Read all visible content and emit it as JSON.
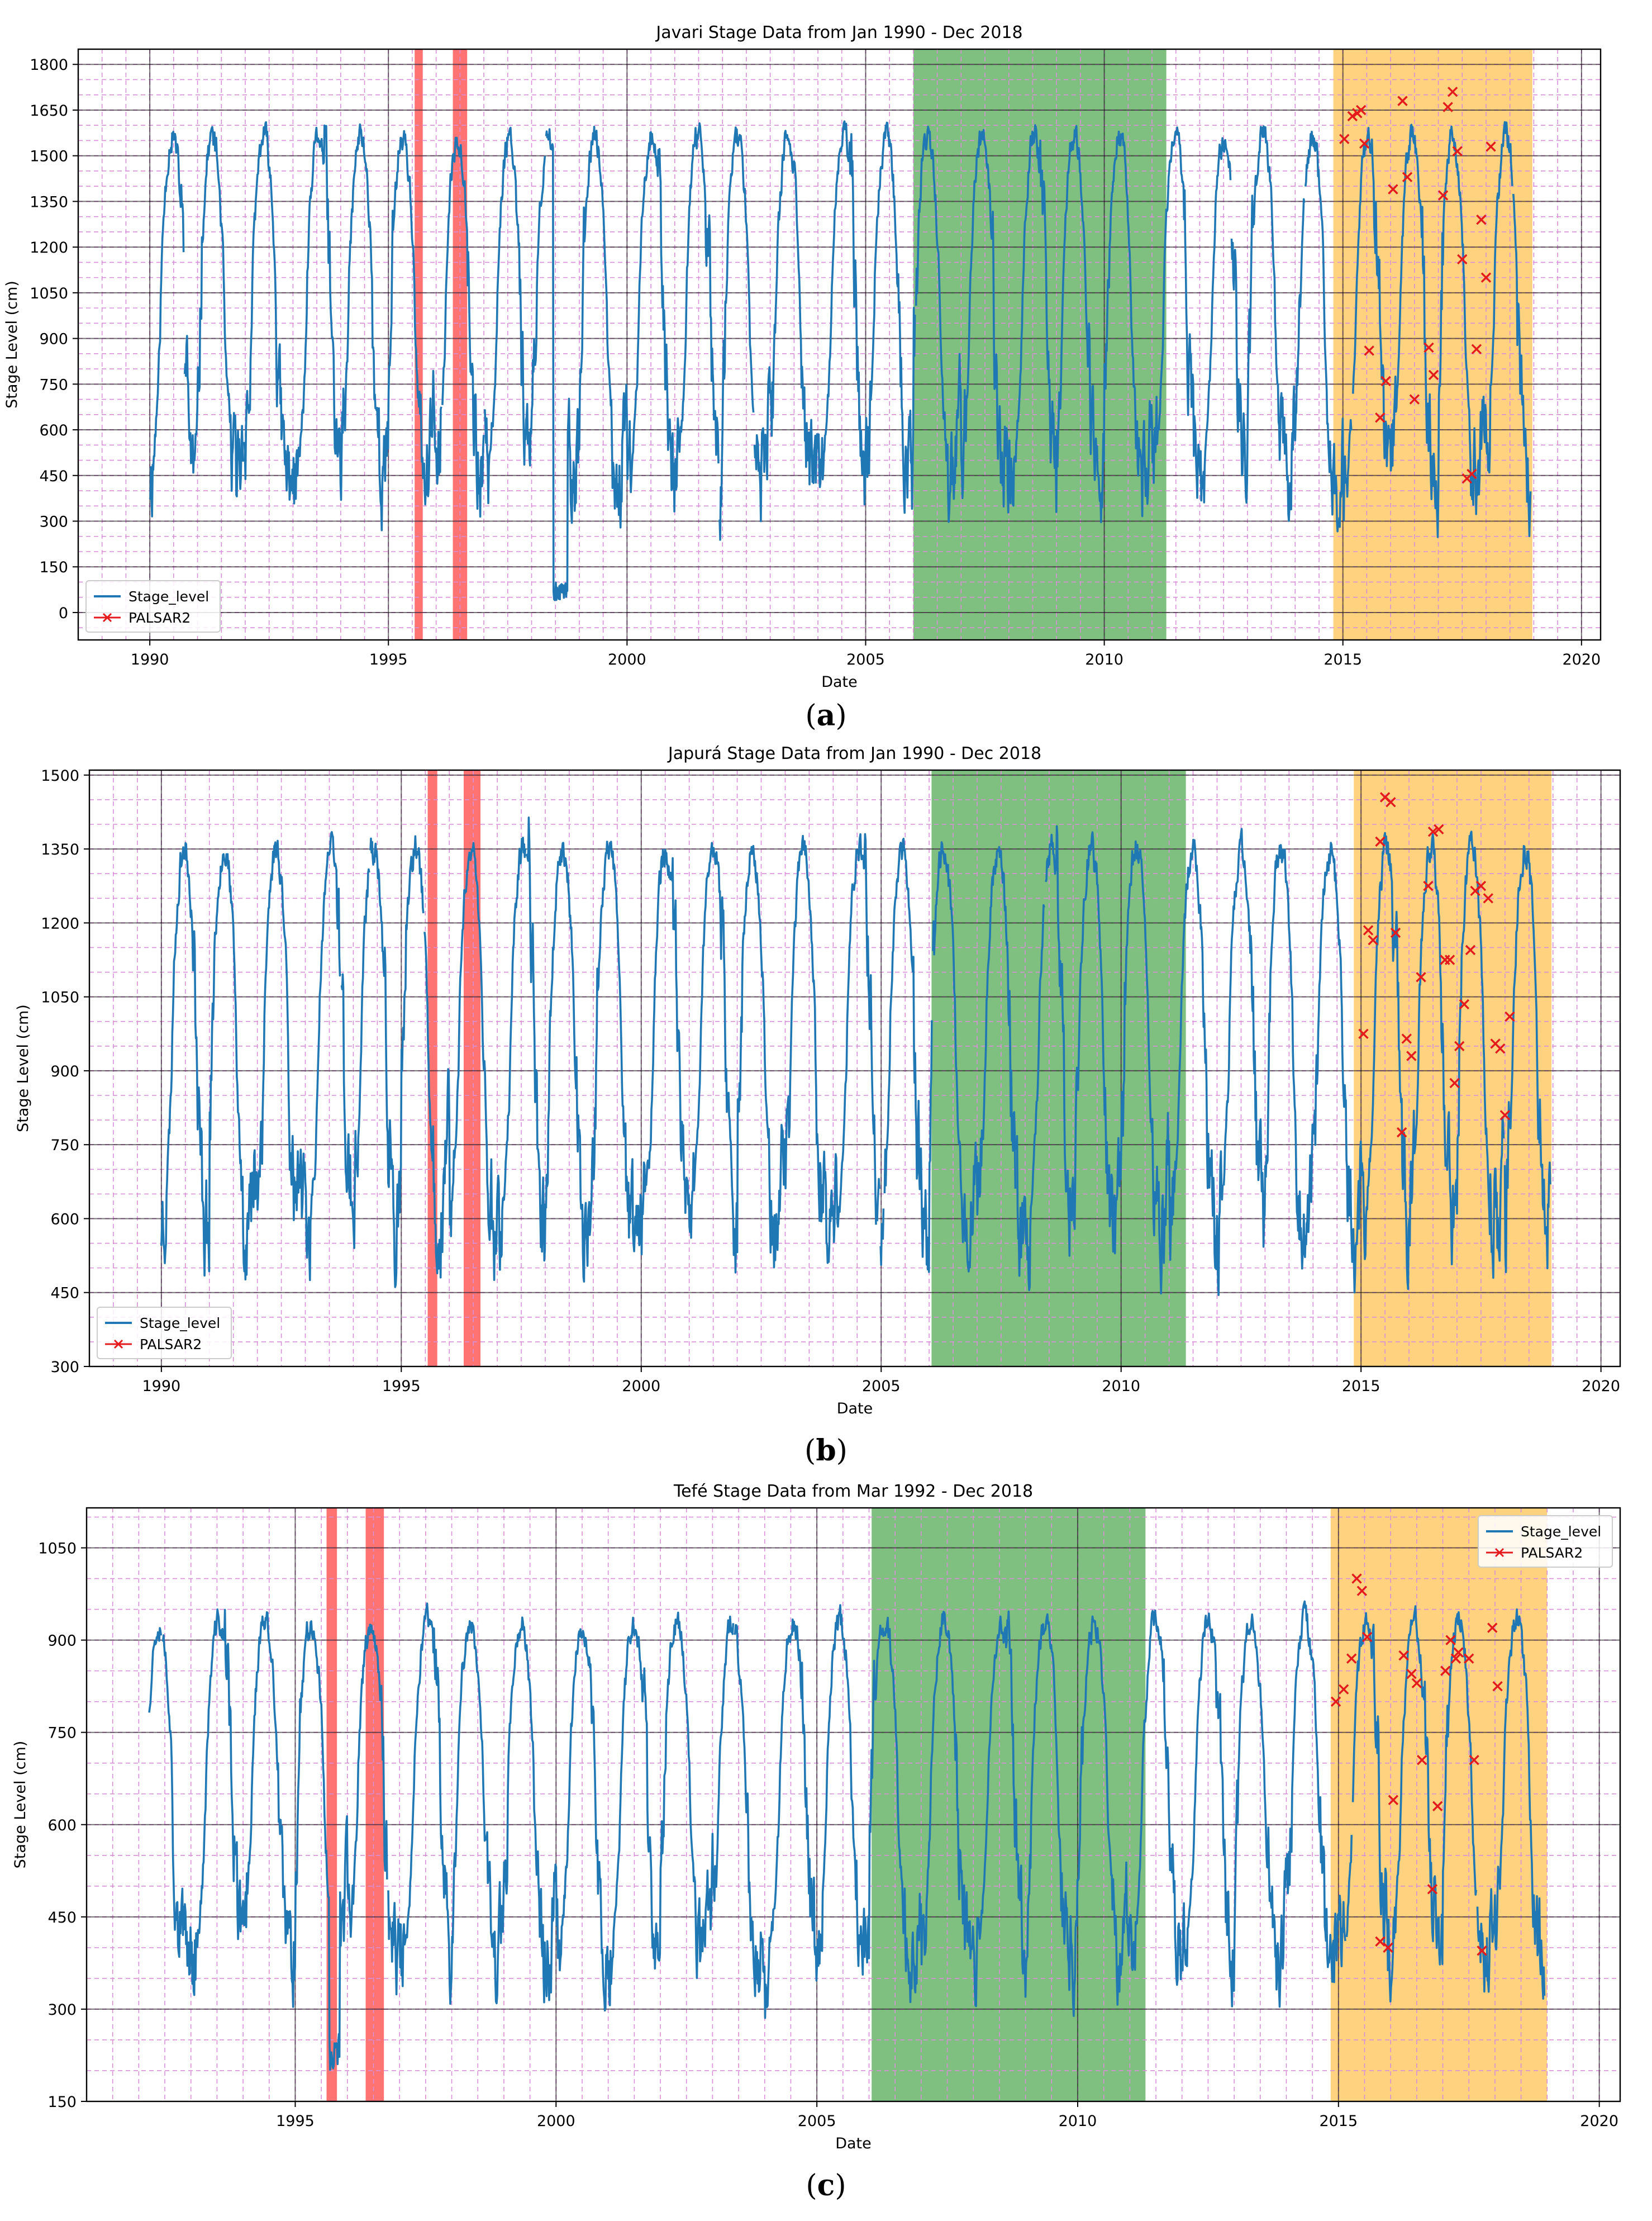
{
  "figure_captions": [
    {
      "open": "(",
      "letter": "a",
      "close": ")"
    },
    {
      "open": "(",
      "letter": "b",
      "close": ")"
    },
    {
      "open": "(",
      "letter": "c",
      "close": ")"
    }
  ],
  "colors": {
    "series": "#1f77b4",
    "palsar": "#e41a1c",
    "red_band": "#ff0000",
    "green_band": "#008000",
    "orange_band": "#ffa500",
    "minor_grid": "#d88fd8",
    "major_grid": "#000000"
  },
  "chart_data": [
    {
      "type": "line",
      "title": "Javari Stage Data from Jan 1990 - Dec 2018",
      "xlabel": "Date",
      "ylabel": "Stage Level (cm)",
      "xlim": [
        1988.5,
        2020.4
      ],
      "ylim": [
        -90,
        1850
      ],
      "xticks": [
        1990,
        1995,
        2000,
        2005,
        2010,
        2015,
        2020
      ],
      "yticks": [
        0,
        150,
        300,
        450,
        600,
        750,
        900,
        1050,
        1200,
        1350,
        1500,
        1650,
        1800
      ],
      "legend": {
        "position": "lower-left",
        "entries": [
          "Stage_level",
          "PALSAR2"
        ]
      },
      "shaded_periods": [
        {
          "label": "red",
          "start": 1995.55,
          "end": 1995.72
        },
        {
          "label": "red",
          "start": 1996.35,
          "end": 1996.65
        },
        {
          "label": "green",
          "start": 2006.0,
          "end": 2011.3
        },
        {
          "label": "orange",
          "start": 2014.8,
          "end": 2018.97
        }
      ],
      "series": [
        {
          "name": "Stage_level",
          "start": 1990.0,
          "end": 2018.95,
          "mean": 1005,
          "amplitude": 560,
          "seed": 11,
          "dropouts": [
            [
              1998.45,
              1998.75,
              40
            ]
          ]
        },
        {
          "name": "PALSAR2",
          "points": [
            [
              2015.03,
              1555
            ],
            [
              2015.2,
              1630
            ],
            [
              2015.3,
              1640
            ],
            [
              2015.38,
              1650
            ],
            [
              2015.45,
              1540
            ],
            [
              2015.55,
              860
            ],
            [
              2015.78,
              640
            ],
            [
              2015.9,
              760
            ],
            [
              2016.05,
              1390
            ],
            [
              2016.25,
              1680
            ],
            [
              2016.35,
              1430
            ],
            [
              2016.5,
              700
            ],
            [
              2016.8,
              870
            ],
            [
              2016.9,
              780
            ],
            [
              2017.1,
              1370
            ],
            [
              2017.2,
              1660
            ],
            [
              2017.3,
              1710
            ],
            [
              2017.4,
              1515
            ],
            [
              2017.5,
              1160
            ],
            [
              2017.6,
              440
            ],
            [
              2017.7,
              455
            ],
            [
              2017.8,
              865
            ],
            [
              2017.9,
              1290
            ],
            [
              2018.0,
              1100
            ],
            [
              2018.1,
              1530
            ]
          ]
        }
      ]
    },
    {
      "type": "line",
      "title": "Japurá Stage Data from Jan 1990 - Dec 2018",
      "xlabel": "Date",
      "ylabel": "Stage Level (cm)",
      "xlim": [
        1988.5,
        2020.4
      ],
      "ylim": [
        300,
        1510
      ],
      "xticks": [
        1990,
        1995,
        2000,
        2005,
        2010,
        2015,
        2020
      ],
      "yticks": [
        300,
        450,
        600,
        750,
        900,
        1050,
        1200,
        1350,
        1500
      ],
      "legend": {
        "position": "lower-left",
        "entries": [
          "Stage_level",
          "PALSAR2"
        ]
      },
      "shaded_periods": [
        {
          "label": "red",
          "start": 1995.55,
          "end": 1995.75
        },
        {
          "label": "red",
          "start": 1996.3,
          "end": 1996.65
        },
        {
          "label": "green",
          "start": 2006.05,
          "end": 2011.35
        },
        {
          "label": "orange",
          "start": 2014.85,
          "end": 2018.97
        }
      ],
      "series": [
        {
          "name": "Stage_level",
          "start": 1990.0,
          "end": 2018.95,
          "mean": 970,
          "amplitude": 380,
          "seed": 23,
          "dropouts": []
        },
        {
          "name": "PALSAR2",
          "points": [
            [
              2015.05,
              975
            ],
            [
              2015.15,
              1185
            ],
            [
              2015.25,
              1165
            ],
            [
              2015.4,
              1365
            ],
            [
              2015.5,
              1455
            ],
            [
              2015.62,
              1445
            ],
            [
              2015.72,
              1180
            ],
            [
              2015.85,
              775
            ],
            [
              2015.95,
              965
            ],
            [
              2016.05,
              930
            ],
            [
              2016.25,
              1090
            ],
            [
              2016.4,
              1275
            ],
            [
              2016.5,
              1385
            ],
            [
              2016.62,
              1390
            ],
            [
              2016.75,
              1125
            ],
            [
              2016.85,
              1125
            ],
            [
              2016.95,
              875
            ],
            [
              2017.05,
              950
            ],
            [
              2017.15,
              1035
            ],
            [
              2017.28,
              1145
            ],
            [
              2017.38,
              1265
            ],
            [
              2017.5,
              1275
            ],
            [
              2017.65,
              1250
            ],
            [
              2017.8,
              955
            ],
            [
              2017.9,
              945
            ],
            [
              2018.0,
              810
            ],
            [
              2018.1,
              1010
            ]
          ]
        }
      ]
    },
    {
      "type": "line",
      "title": "Tefé Stage Data from Mar 1992 - Dec 2018",
      "xlabel": "Date",
      "ylabel": "Stage Level (cm)",
      "xlim": [
        1991.0,
        2020.4
      ],
      "ylim": [
        150,
        1115
      ],
      "xticks": [
        1995,
        2000,
        2005,
        2010,
        2015,
        2020
      ],
      "yticks": [
        150,
        300,
        450,
        600,
        750,
        900,
        1050
      ],
      "legend": {
        "position": "top-right",
        "entries": [
          "Stage_level",
          "PALSAR2"
        ]
      },
      "shaded_periods": [
        {
          "label": "red",
          "start": 1995.6,
          "end": 1995.8
        },
        {
          "label": "red",
          "start": 1996.35,
          "end": 1996.7
        },
        {
          "label": "green",
          "start": 2006.05,
          "end": 2011.3
        },
        {
          "label": "orange",
          "start": 2014.85,
          "end": 2019.0
        }
      ],
      "series": [
        {
          "name": "Stage_level",
          "start": 1992.2,
          "end": 2018.95,
          "mean": 660,
          "amplitude": 270,
          "seed": 37,
          "dropouts": [
            [
              1995.65,
              1995.85,
              200
            ]
          ]
        },
        {
          "name": "PALSAR2",
          "points": [
            [
              2014.95,
              800
            ],
            [
              2015.1,
              820
            ],
            [
              2015.25,
              870
            ],
            [
              2015.35,
              1000
            ],
            [
              2015.45,
              980
            ],
            [
              2015.55,
              905
            ],
            [
              2015.8,
              410
            ],
            [
              2015.95,
              400
            ],
            [
              2016.05,
              640
            ],
            [
              2016.25,
              875
            ],
            [
              2016.4,
              845
            ],
            [
              2016.5,
              830
            ],
            [
              2016.6,
              705
            ],
            [
              2016.8,
              495
            ],
            [
              2016.9,
              630
            ],
            [
              2017.05,
              850
            ],
            [
              2017.15,
              900
            ],
            [
              2017.25,
              870
            ],
            [
              2017.3,
              880
            ],
            [
              2017.5,
              870
            ],
            [
              2017.6,
              705
            ],
            [
              2017.75,
              395
            ],
            [
              2017.95,
              920
            ],
            [
              2018.05,
              825
            ]
          ]
        }
      ]
    }
  ]
}
